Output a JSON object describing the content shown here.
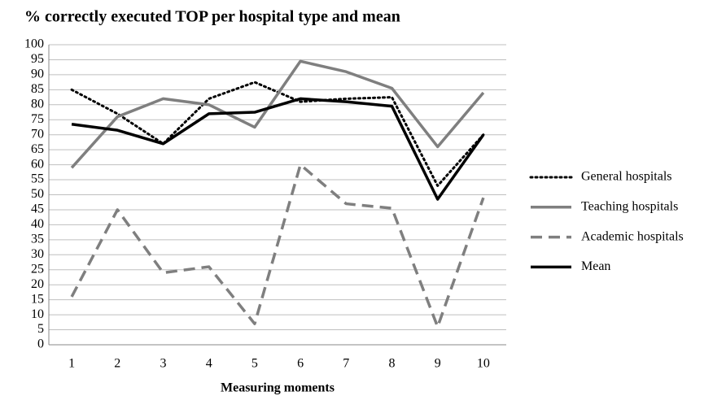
{
  "chart_data": {
    "type": "line",
    "title": "% correctly executed TOP per hospital type and mean",
    "x_label": "Measuring moments",
    "categories": [
      "1",
      "2",
      "3",
      "4",
      "5",
      "6",
      "7",
      "8",
      "9",
      "10"
    ],
    "series": [
      {
        "name": "General hospitals",
        "color": "#000000",
        "dash": "dotted",
        "values": [
          85,
          77,
          67,
          82,
          87.5,
          81,
          82,
          82.5,
          53,
          70
        ]
      },
      {
        "name": "Teaching hospitals",
        "color": "#7f7f7f",
        "dash": "solid",
        "values": [
          59,
          76,
          82,
          80,
          72.5,
          94.5,
          91,
          85.5,
          66,
          84
        ]
      },
      {
        "name": "Academic hospitals",
        "color": "#7f7f7f",
        "dash": "dashed",
        "values": [
          16,
          45,
          24,
          26,
          7,
          60,
          47,
          45.5,
          6,
          49
        ]
      },
      {
        "name": "Mean",
        "color": "#000000",
        "dash": "solid",
        "values": [
          73.5,
          71.5,
          67,
          77,
          77.5,
          82,
          81,
          79.5,
          48.5,
          70
        ]
      }
    ],
    "ylim": [
      0,
      100
    ],
    "yticks": [
      0,
      5,
      10,
      15,
      20,
      25,
      30,
      35,
      40,
      45,
      50,
      55,
      60,
      65,
      70,
      75,
      80,
      85,
      90,
      95,
      100
    ],
    "grid": true,
    "legend": "right"
  }
}
